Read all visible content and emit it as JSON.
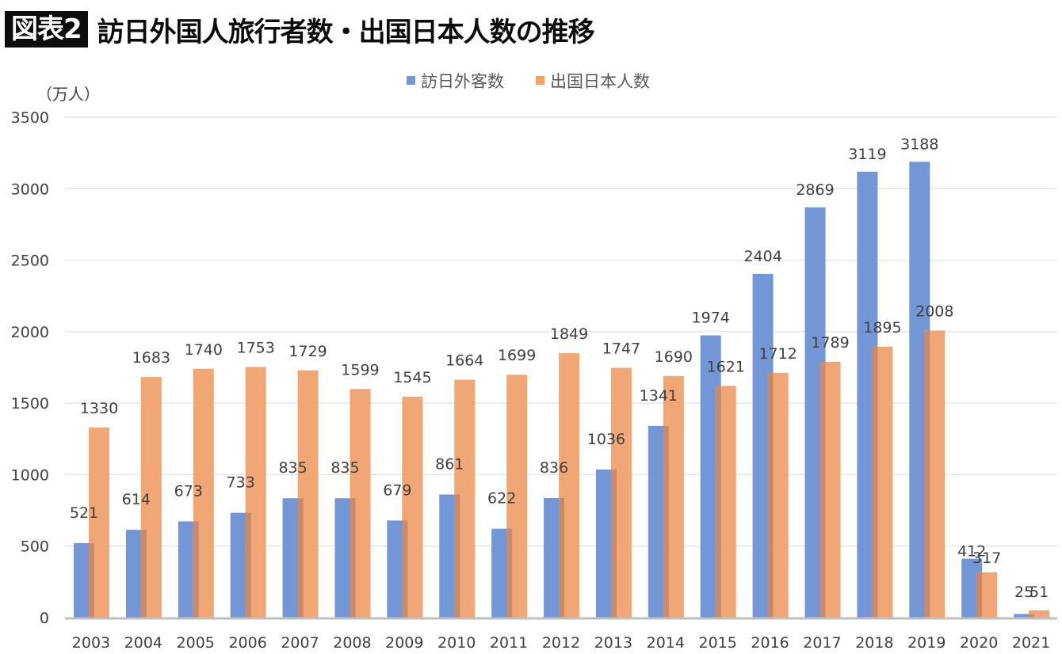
{
  "title": {
    "tag": "図表2",
    "text": "訪日外国人旅行者数・出国日本人数の推移"
  },
  "chart_data": {
    "type": "bar",
    "title": "訪日外国人旅行者数・出国日本人数の推移",
    "xlabel": "",
    "ylabel": "（万人）",
    "unit_label": "（万人）",
    "ylim": [
      0,
      3500
    ],
    "yticks": [
      0,
      500,
      1000,
      1500,
      2000,
      2500,
      3000,
      3500
    ],
    "grid": true,
    "legend_position": "top-center",
    "categories": [
      "2003",
      "2004",
      "2005",
      "2006",
      "2007",
      "2008",
      "2009",
      "2010",
      "2011",
      "2012",
      "2013",
      "2014",
      "2015",
      "2016",
      "2017",
      "2018",
      "2019",
      "2020",
      "2021"
    ],
    "series": [
      {
        "name": "訪日外客数",
        "color": "#7397d6",
        "values": [
          521,
          614,
          673,
          733,
          835,
          835,
          679,
          861,
          622,
          836,
          1036,
          1341,
          1974,
          2404,
          2869,
          3119,
          3188,
          412,
          25
        ]
      },
      {
        "name": "出国日本人数",
        "color": "#f0a06a",
        "values": [
          1330,
          1683,
          1740,
          1753,
          1729,
          1599,
          1545,
          1664,
          1699,
          1849,
          1747,
          1690,
          1621,
          1712,
          1789,
          1895,
          2008,
          317,
          51
        ]
      }
    ]
  }
}
